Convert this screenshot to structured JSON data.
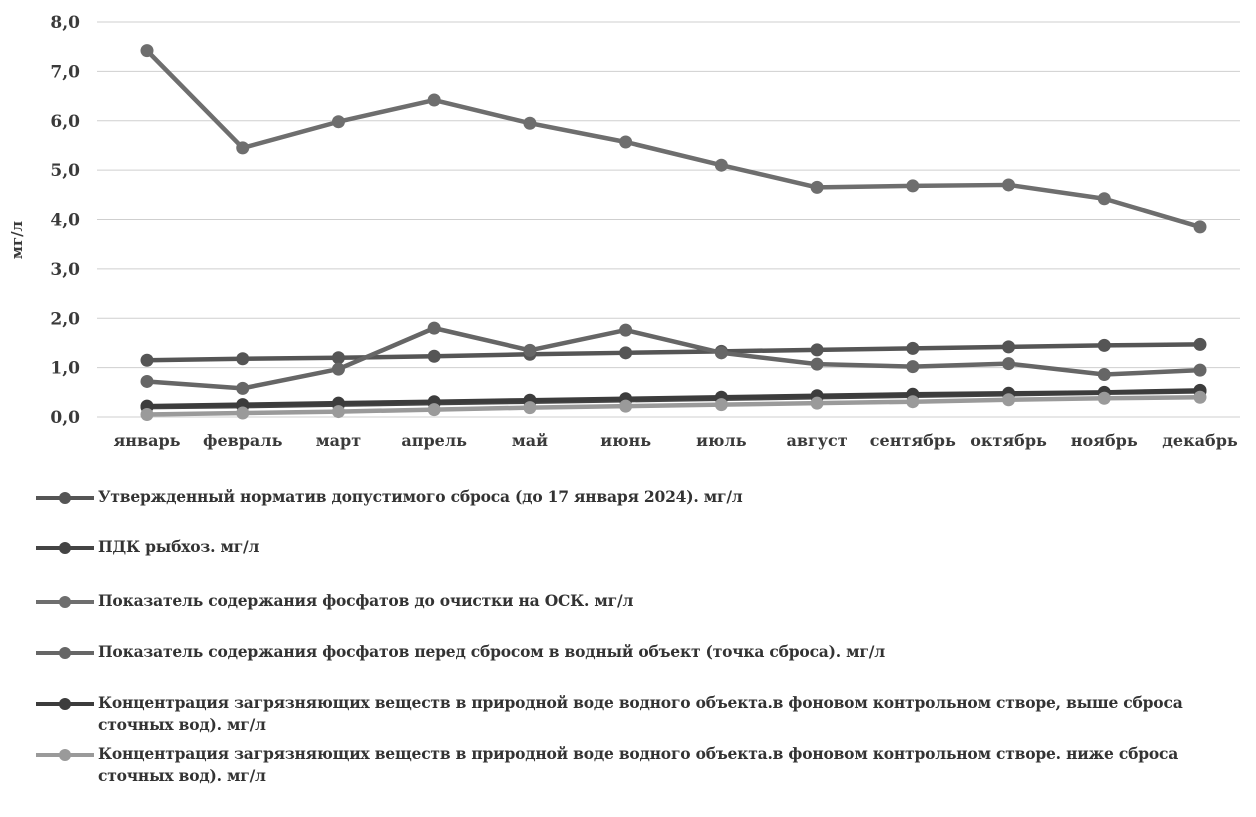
{
  "chart_data": {
    "type": "line",
    "title": "",
    "xlabel": "",
    "ylabel": "мг/л",
    "ylim": [
      0,
      8
    ],
    "y_ticks": [
      "0,0",
      "1,0",
      "2,0",
      "3,0",
      "4,0",
      "5,0",
      "6,0",
      "7,0",
      "8,0"
    ],
    "y_tick_values": [
      0,
      1,
      2,
      3,
      4,
      5,
      6,
      7,
      8
    ],
    "grid": true,
    "legend_position": "bottom",
    "categories": [
      "январь",
      "февраль",
      "март",
      "апрель",
      "май",
      "июнь",
      "июль",
      "август",
      "сентябрь",
      "октябрь",
      "ноябрь",
      "декабрь"
    ],
    "series": [
      {
        "name": "Утвержденный норматив допустимого сброса (до 17 января 2024). мг/л",
        "color": "#555555",
        "values": [
          1.15,
          1.18,
          1.2,
          1.23,
          1.27,
          1.3,
          1.33,
          1.36,
          1.39,
          1.42,
          1.45,
          1.47
        ]
      },
      {
        "name": "ПДК рыбхоз. мг/л",
        "color": "#444444",
        "values": [
          0.2,
          0.22,
          0.25,
          0.28,
          0.31,
          0.34,
          0.37,
          0.4,
          0.43,
          0.46,
          0.49,
          0.52
        ]
      },
      {
        "name": "Показатель содержания фосфатов до очистки на ОСК. мг/л",
        "color": "#6e6e6e",
        "values": [
          7.42,
          5.45,
          5.98,
          6.42,
          5.95,
          5.57,
          5.1,
          4.65,
          4.68,
          4.7,
          4.42,
          3.85
        ]
      },
      {
        "name": "Показатель содержания фосфатов перед сбросом в водный объект (точка сброса). мг/л",
        "color": "#666666",
        "values": [
          0.72,
          0.58,
          0.97,
          1.8,
          1.35,
          1.76,
          1.3,
          1.07,
          1.02,
          1.08,
          0.86,
          0.95
        ]
      },
      {
        "name": "Концентрация загрязняющих веществ в природной воде водного объекта.в фоновом контрольном створе, выше сброса сточных вод). мг/л",
        "color": "#3c3c3c",
        "values": [
          0.22,
          0.25,
          0.28,
          0.31,
          0.34,
          0.37,
          0.4,
          0.43,
          0.46,
          0.48,
          0.5,
          0.54
        ]
      },
      {
        "name": "Концентрация загрязняющих веществ в природной воде водного объекта.в фоновом контрольном створе. ниже сброса сточных вод). мг/л",
        "color": "#9a9a9a",
        "values": [
          0.05,
          0.08,
          0.11,
          0.15,
          0.19,
          0.22,
          0.25,
          0.28,
          0.31,
          0.35,
          0.38,
          0.4
        ]
      }
    ]
  }
}
